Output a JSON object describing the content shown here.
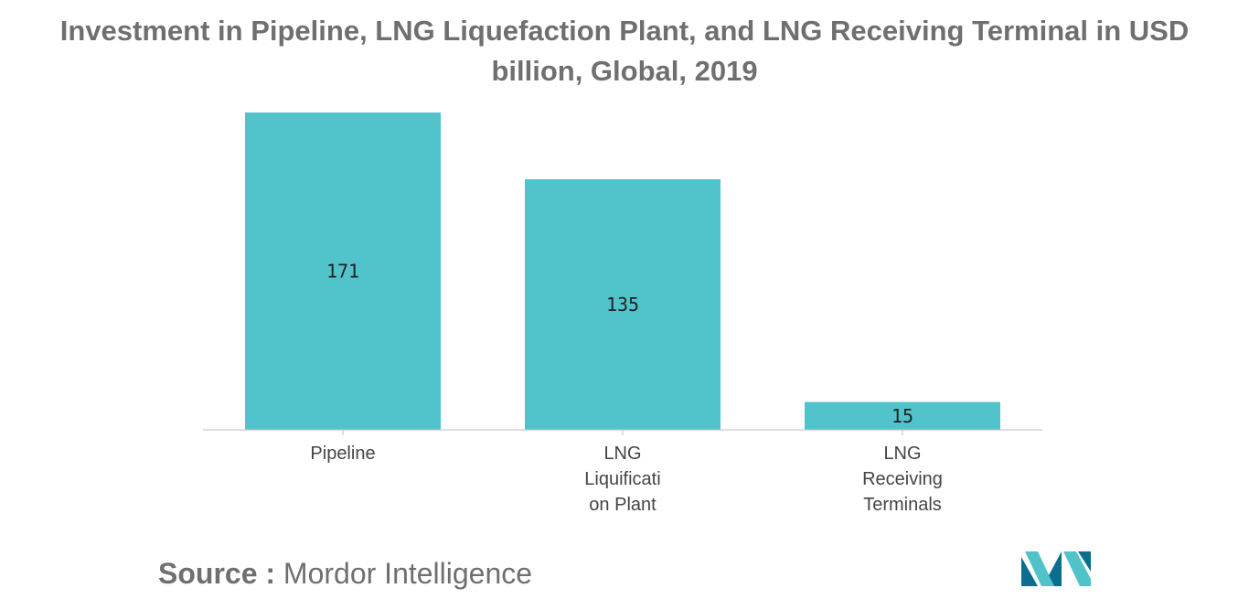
{
  "header": {
    "title": "Investment in Pipeline, LNG Liquefaction Plant, and LNG Receiving Terminal in USD billion, Global, 2019"
  },
  "chart_data": {
    "type": "bar",
    "title": "Investment in Pipeline, LNG Liquefaction Plant, and LNG Receiving Terminal in USD billion, Global, 2019",
    "xlabel": "",
    "ylabel": "",
    "categories": [
      "Pipeline",
      "LNG Liquificati on Plant",
      "LNG Receiving Terminals"
    ],
    "category_lines": [
      [
        "Pipeline"
      ],
      [
        "LNG",
        "Liquificati",
        "on Plant"
      ],
      [
        "LNG",
        "Receiving",
        "Terminals"
      ]
    ],
    "values": [
      171,
      135,
      15
    ],
    "ylim": [
      0,
      171
    ],
    "grid": false,
    "legend": "none",
    "bar_color": "#51c3cb",
    "axis_color": "#bdbdbd"
  },
  "footer": {
    "source_label": "Source :",
    "source_value": "Mordor Intelligence"
  },
  "logo": {
    "icon": "mordor-intelligence-logo-icon",
    "colors": [
      "#0b6e8e",
      "#50c3c8"
    ]
  }
}
